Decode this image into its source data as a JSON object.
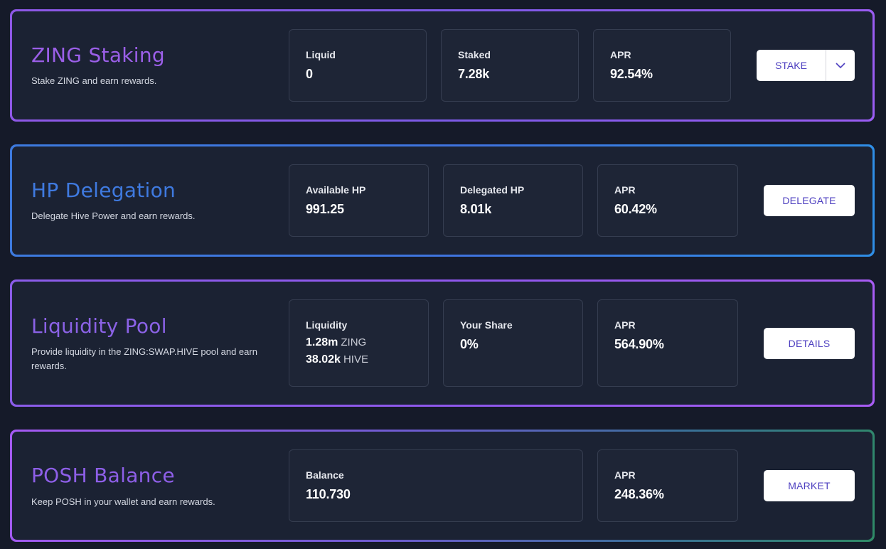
{
  "colors": {
    "page_background": "#151a29",
    "card_background": "#1b2233",
    "zing_title": "#9b5fe8",
    "hp_title": "#3f7ae0",
    "pool_title": "#8b62e6",
    "posh_title": "#8e5fe8",
    "button_text": "#4d3fc0"
  },
  "zing": {
    "title": "ZING Staking",
    "description": "Stake ZING and earn rewards.",
    "stats": [
      {
        "label": "Liquid",
        "value": "0"
      },
      {
        "label": "Staked",
        "value": "7.28k"
      },
      {
        "label": "APR",
        "value": "92.54%"
      }
    ],
    "button": "STAKE",
    "dropdown_icon": "chevron-down-icon"
  },
  "hp": {
    "title": "HP Delegation",
    "description": "Delegate Hive Power and earn rewards.",
    "stats": [
      {
        "label": "Available HP",
        "value": "991.25"
      },
      {
        "label": "Delegated HP",
        "value": "8.01k"
      },
      {
        "label": "APR",
        "value": "60.42%"
      }
    ],
    "button": "DELEGATE"
  },
  "pool": {
    "title": "Liquidity Pool",
    "description": "Provide liquidity in the ZING:SWAP.HIVE pool and earn rewards.",
    "liquidity": {
      "label": "Liquidity",
      "lines": [
        {
          "amount": "1.28m",
          "unit": "ZING"
        },
        {
          "amount": "38.02k",
          "unit": "HIVE"
        }
      ]
    },
    "stats": [
      {
        "label": "Your Share",
        "value": "0%"
      },
      {
        "label": "APR",
        "value": "564.90%"
      }
    ],
    "button": "DETAILS"
  },
  "posh": {
    "title": "POSH Balance",
    "description": "Keep POSH in your wallet and earn rewards.",
    "stats": [
      {
        "label": "Balance",
        "value": "110.730"
      },
      {
        "label": "APR",
        "value": "248.36%"
      }
    ],
    "button": "MARKET"
  }
}
